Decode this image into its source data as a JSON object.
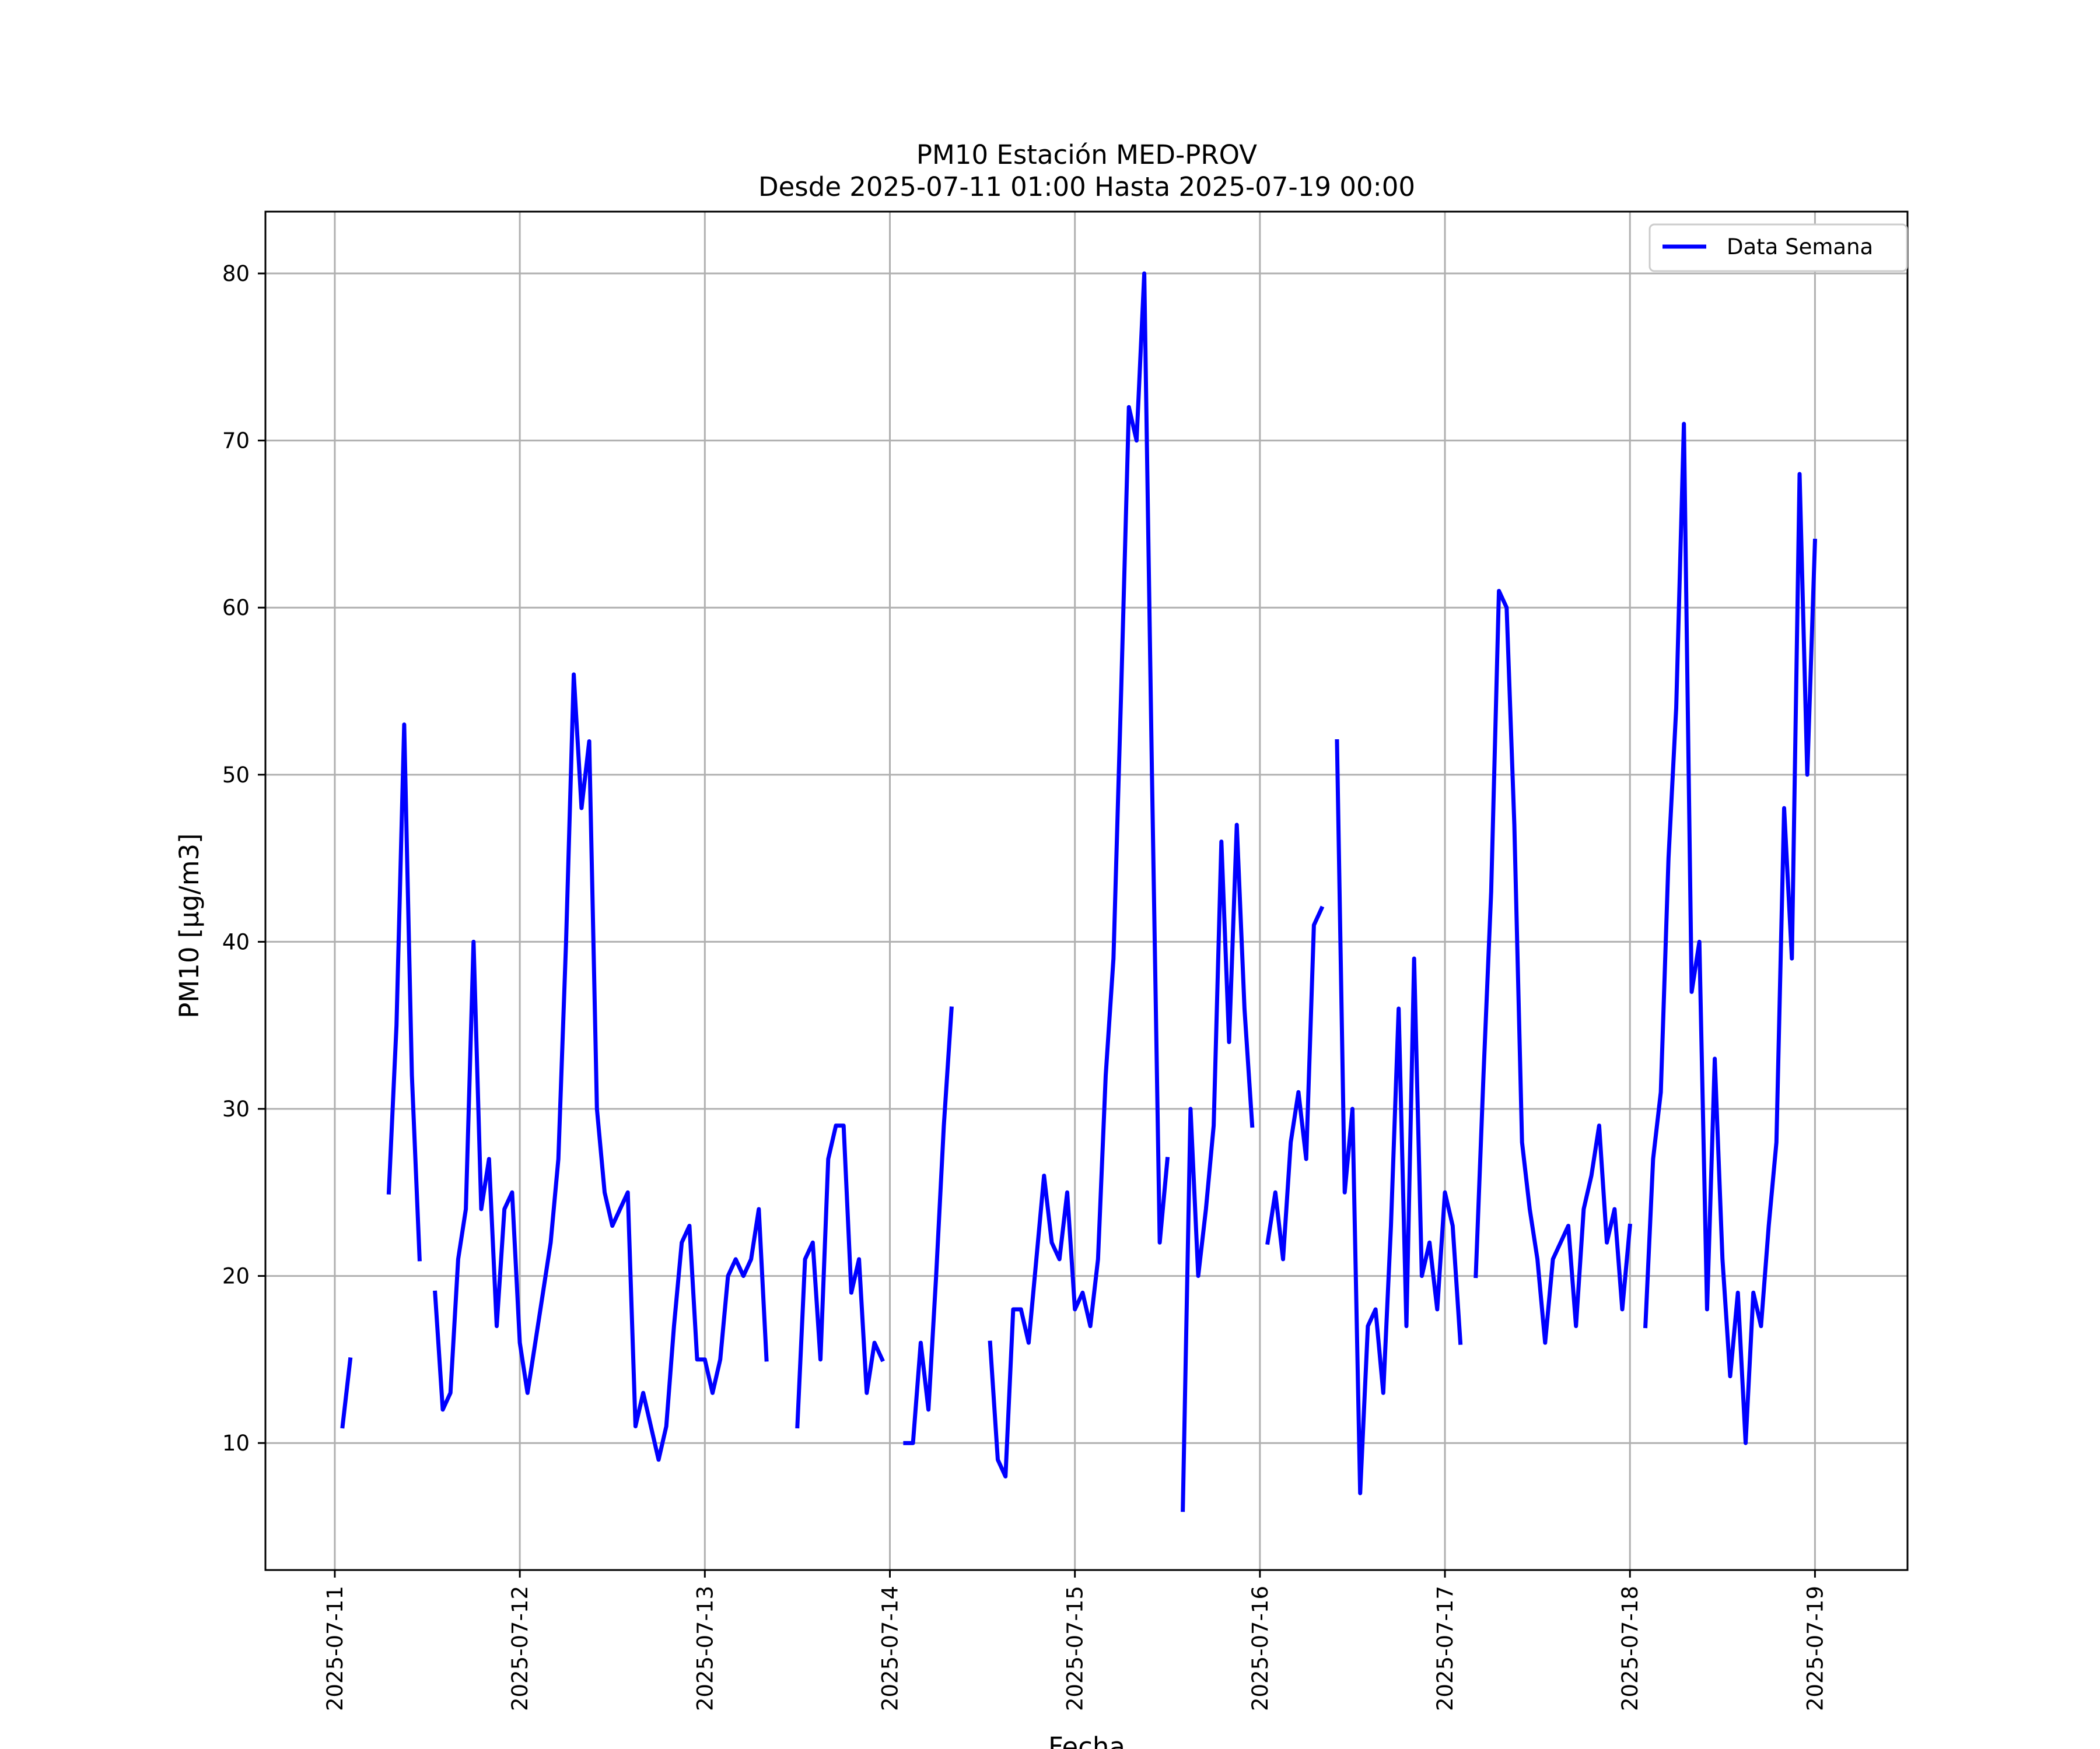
{
  "chart_data": {
    "type": "line",
    "title": "PM10 Estación MED-PROV",
    "subtitle": "Desde 2025-07-11 01:00 Hasta 2025-07-19 00:00",
    "xlabel": "Fecha",
    "ylabel": "PM10 [μg/m3]",
    "x_range": [
      "2025-07-10 15:00",
      "2025-07-19 12:00"
    ],
    "ylim": [
      2.4,
      83.7
    ],
    "grid": true,
    "legend": "top-right",
    "x_ticks": [
      "2025-07-11",
      "2025-07-12",
      "2025-07-13",
      "2025-07-14",
      "2025-07-15",
      "2025-07-16",
      "2025-07-17",
      "2025-07-18",
      "2025-07-19"
    ],
    "y_ticks": [
      "10",
      "20",
      "30",
      "40",
      "50",
      "60",
      "70",
      "80"
    ],
    "line_color": "#0000ff",
    "series": [
      {
        "name": "Data Semana",
        "segments": [
          [
            [
              "2025-07-11 01:00",
              11
            ],
            [
              "2025-07-11 02:00",
              15
            ]
          ],
          [
            [
              "2025-07-11 07:00",
              25
            ],
            [
              "2025-07-11 08:00",
              35
            ],
            [
              "2025-07-11 09:00",
              53
            ],
            [
              "2025-07-11 10:00",
              32
            ],
            [
              "2025-07-11 11:00",
              21
            ]
          ],
          [
            [
              "2025-07-11 13:00",
              19
            ],
            [
              "2025-07-11 14:00",
              12
            ],
            [
              "2025-07-11 15:00",
              13
            ],
            [
              "2025-07-11 16:00",
              21
            ],
            [
              "2025-07-11 17:00",
              24
            ],
            [
              "2025-07-11 18:00",
              40
            ],
            [
              "2025-07-11 19:00",
              24
            ],
            [
              "2025-07-11 20:00",
              27
            ],
            [
              "2025-07-11 21:00",
              17
            ],
            [
              "2025-07-11 22:00",
              24
            ],
            [
              "2025-07-11 23:00",
              25
            ],
            [
              "2025-07-12 00:00",
              16
            ],
            [
              "2025-07-12 01:00",
              13
            ],
            [
              "2025-07-12 02:00",
              16
            ],
            [
              "2025-07-12 03:00",
              19
            ],
            [
              "2025-07-12 04:00",
              22
            ],
            [
              "2025-07-12 05:00",
              27
            ],
            [
              "2025-07-12 06:00",
              40
            ],
            [
              "2025-07-12 07:00",
              56
            ],
            [
              "2025-07-12 08:00",
              48
            ],
            [
              "2025-07-12 09:00",
              52
            ],
            [
              "2025-07-12 10:00",
              30
            ],
            [
              "2025-07-12 11:00",
              25
            ],
            [
              "2025-07-12 12:00",
              23
            ],
            [
              "2025-07-12 13:00",
              24
            ],
            [
              "2025-07-12 14:00",
              25
            ],
            [
              "2025-07-12 15:00",
              11
            ],
            [
              "2025-07-12 16:00",
              13
            ],
            [
              "2025-07-12 17:00",
              11
            ],
            [
              "2025-07-12 18:00",
              9
            ],
            [
              "2025-07-12 19:00",
              11
            ],
            [
              "2025-07-12 20:00",
              17
            ],
            [
              "2025-07-12 21:00",
              22
            ],
            [
              "2025-07-12 22:00",
              23
            ],
            [
              "2025-07-12 23:00",
              15
            ],
            [
              "2025-07-13 00:00",
              15
            ],
            [
              "2025-07-13 01:00",
              13
            ],
            [
              "2025-07-13 02:00",
              15
            ],
            [
              "2025-07-13 03:00",
              20
            ],
            [
              "2025-07-13 04:00",
              21
            ],
            [
              "2025-07-13 05:00",
              20
            ],
            [
              "2025-07-13 06:00",
              21
            ],
            [
              "2025-07-13 07:00",
              24
            ],
            [
              "2025-07-13 08:00",
              15
            ]
          ],
          [
            [
              "2025-07-13 12:00",
              11
            ],
            [
              "2025-07-13 13:00",
              21
            ],
            [
              "2025-07-13 14:00",
              22
            ],
            [
              "2025-07-13 15:00",
              15
            ],
            [
              "2025-07-13 16:00",
              27
            ],
            [
              "2025-07-13 17:00",
              29
            ],
            [
              "2025-07-13 18:00",
              29
            ],
            [
              "2025-07-13 19:00",
              19
            ],
            [
              "2025-07-13 20:00",
              21
            ],
            [
              "2025-07-13 21:00",
              13
            ],
            [
              "2025-07-13 22:00",
              16
            ],
            [
              "2025-07-13 23:00",
              15
            ]
          ],
          [
            [
              "2025-07-14 02:00",
              10
            ],
            [
              "2025-07-14 03:00",
              10
            ],
            [
              "2025-07-14 04:00",
              16
            ],
            [
              "2025-07-14 05:00",
              12
            ],
            [
              "2025-07-14 06:00",
              20
            ],
            [
              "2025-07-14 07:00",
              29
            ],
            [
              "2025-07-14 08:00",
              36
            ]
          ],
          [
            [
              "2025-07-14 13:00",
              16
            ],
            [
              "2025-07-14 14:00",
              9
            ],
            [
              "2025-07-14 15:00",
              8
            ],
            [
              "2025-07-14 16:00",
              18
            ],
            [
              "2025-07-14 17:00",
              18
            ],
            [
              "2025-07-14 18:00",
              16
            ],
            [
              "2025-07-14 19:00",
              21
            ],
            [
              "2025-07-14 20:00",
              26
            ],
            [
              "2025-07-14 21:00",
              22
            ],
            [
              "2025-07-14 22:00",
              21
            ],
            [
              "2025-07-14 23:00",
              25
            ],
            [
              "2025-07-15 00:00",
              18
            ],
            [
              "2025-07-15 01:00",
              19
            ],
            [
              "2025-07-15 02:00",
              17
            ],
            [
              "2025-07-15 03:00",
              21
            ],
            [
              "2025-07-15 04:00",
              32
            ],
            [
              "2025-07-15 05:00",
              39
            ],
            [
              "2025-07-15 06:00",
              55
            ],
            [
              "2025-07-15 07:00",
              72
            ],
            [
              "2025-07-15 08:00",
              70
            ],
            [
              "2025-07-15 09:00",
              80
            ],
            [
              "2025-07-15 10:00",
              50
            ],
            [
              "2025-07-15 11:00",
              22
            ],
            [
              "2025-07-15 12:00",
              27
            ]
          ],
          [
            [
              "2025-07-15 14:00",
              6
            ],
            [
              "2025-07-15 15:00",
              30
            ],
            [
              "2025-07-15 16:00",
              20
            ],
            [
              "2025-07-15 17:00",
              24
            ],
            [
              "2025-07-15 18:00",
              29
            ],
            [
              "2025-07-15 19:00",
              46
            ],
            [
              "2025-07-15 20:00",
              34
            ],
            [
              "2025-07-15 21:00",
              47
            ],
            [
              "2025-07-15 22:00",
              36
            ],
            [
              "2025-07-15 23:00",
              29
            ]
          ],
          [
            [
              "2025-07-16 01:00",
              22
            ],
            [
              "2025-07-16 02:00",
              25
            ],
            [
              "2025-07-16 03:00",
              21
            ],
            [
              "2025-07-16 04:00",
              28
            ],
            [
              "2025-07-16 05:00",
              31
            ],
            [
              "2025-07-16 06:00",
              27
            ],
            [
              "2025-07-16 07:00",
              41
            ],
            [
              "2025-07-16 08:00",
              42
            ]
          ],
          [
            [
              "2025-07-16 10:00",
              52
            ],
            [
              "2025-07-16 11:00",
              25
            ],
            [
              "2025-07-16 12:00",
              30
            ],
            [
              "2025-07-16 13:00",
              7
            ],
            [
              "2025-07-16 14:00",
              17
            ],
            [
              "2025-07-16 15:00",
              18
            ],
            [
              "2025-07-16 16:00",
              13
            ],
            [
              "2025-07-16 17:00",
              23
            ],
            [
              "2025-07-16 18:00",
              36
            ],
            [
              "2025-07-16 19:00",
              17
            ],
            [
              "2025-07-16 20:00",
              39
            ],
            [
              "2025-07-16 21:00",
              20
            ],
            [
              "2025-07-16 22:00",
              22
            ],
            [
              "2025-07-16 23:00",
              18
            ],
            [
              "2025-07-17 00:00",
              25
            ],
            [
              "2025-07-17 01:00",
              23
            ],
            [
              "2025-07-17 02:00",
              16
            ]
          ],
          [
            [
              "2025-07-17 04:00",
              20
            ],
            [
              "2025-07-17 05:00",
              32
            ],
            [
              "2025-07-17 06:00",
              43
            ],
            [
              "2025-07-17 07:00",
              61
            ],
            [
              "2025-07-17 08:00",
              60
            ],
            [
              "2025-07-17 09:00",
              47
            ],
            [
              "2025-07-17 10:00",
              28
            ],
            [
              "2025-07-17 11:00",
              24
            ],
            [
              "2025-07-17 12:00",
              21
            ],
            [
              "2025-07-17 13:00",
              16
            ],
            [
              "2025-07-17 14:00",
              21
            ],
            [
              "2025-07-17 15:00",
              22
            ],
            [
              "2025-07-17 16:00",
              23
            ],
            [
              "2025-07-17 17:00",
              17
            ],
            [
              "2025-07-17 18:00",
              24
            ],
            [
              "2025-07-17 19:00",
              26
            ],
            [
              "2025-07-17 20:00",
              29
            ],
            [
              "2025-07-17 21:00",
              22
            ],
            [
              "2025-07-17 22:00",
              24
            ],
            [
              "2025-07-17 23:00",
              18
            ],
            [
              "2025-07-18 00:00",
              23
            ]
          ],
          [
            [
              "2025-07-18 02:00",
              17
            ],
            [
              "2025-07-18 03:00",
              27
            ],
            [
              "2025-07-18 04:00",
              31
            ],
            [
              "2025-07-18 05:00",
              45
            ],
            [
              "2025-07-18 06:00",
              54
            ],
            [
              "2025-07-18 07:00",
              71
            ],
            [
              "2025-07-18 08:00",
              37
            ],
            [
              "2025-07-18 09:00",
              40
            ],
            [
              "2025-07-18 10:00",
              18
            ],
            [
              "2025-07-18 11:00",
              33
            ],
            [
              "2025-07-18 12:00",
              21
            ],
            [
              "2025-07-18 13:00",
              14
            ],
            [
              "2025-07-18 14:00",
              19
            ],
            [
              "2025-07-18 15:00",
              10
            ],
            [
              "2025-07-18 16:00",
              19
            ],
            [
              "2025-07-18 17:00",
              17
            ],
            [
              "2025-07-18 18:00",
              23
            ],
            [
              "2025-07-18 19:00",
              28
            ],
            [
              "2025-07-18 20:00",
              48
            ],
            [
              "2025-07-18 21:00",
              39
            ],
            [
              "2025-07-18 22:00",
              68
            ],
            [
              "2025-07-18 23:00",
              50
            ],
            [
              "2025-07-19 00:00",
              64
            ]
          ]
        ]
      }
    ]
  }
}
